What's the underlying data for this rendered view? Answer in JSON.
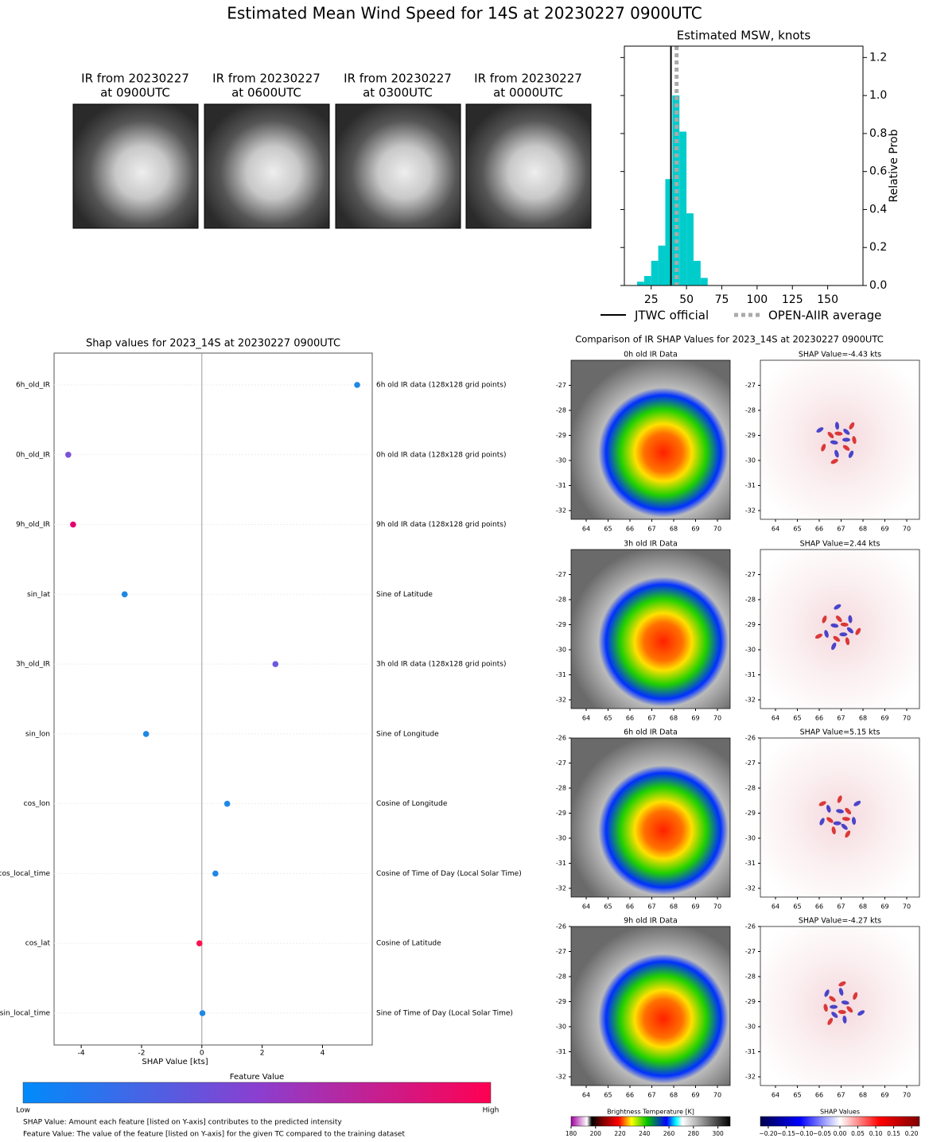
{
  "title": "Estimated Mean Wind Speed for 14S at 20230227 0900UTC",
  "ir_images": [
    {
      "lines": [
        "IR from 20230227",
        "at 0900UTC"
      ]
    },
    {
      "lines": [
        "IR from 20230227",
        "at 0600UTC"
      ]
    },
    {
      "lines": [
        "IR from 20230227",
        "at 0300UTC"
      ]
    },
    {
      "lines": [
        "IR from 20230227",
        "at 0000UTC"
      ]
    }
  ],
  "chart_data": [
    {
      "type": "histogram",
      "title": "Estimated MSW, knots",
      "ylabel": "Relative Prob",
      "bins": [
        15,
        20,
        25,
        30,
        35,
        40,
        45,
        50,
        55,
        60,
        65
      ],
      "values": [
        0.02,
        0.05,
        0.13,
        0.21,
        0.56,
        1.0,
        0.81,
        0.38,
        0.13,
        0.04
      ],
      "color": "#00cccc",
      "xlim": [
        6,
        175
      ],
      "xticks": [
        25,
        50,
        75,
        100,
        125,
        150
      ],
      "ylim": [
        0,
        1.26
      ],
      "yticks": [
        {
          "value": 0,
          "label": "0.0"
        },
        0.2,
        0.4,
        0.6,
        0.8,
        {
          "value": 1,
          "label": "1.0"
        },
        1.2
      ],
      "yaxis_side": "right",
      "vlines": [
        {
          "name": "JTWC official",
          "value": 39,
          "color": "#000000",
          "style": "solid"
        },
        {
          "name": "OPEN-AIIR average",
          "value": 43,
          "color": "#aaaaaa",
          "style": "dotted"
        }
      ],
      "legend": "below"
    },
    {
      "type": "scatter",
      "title": "Shap values for 2023_14S at 20230227 0900UTC",
      "xlabel": "SHAP Value [kts]",
      "categories": [
        "6h_old_IR",
        "0h_old_IR",
        "9h_old_IR",
        "sin_lat",
        "3h_old_IR",
        "sin_lon",
        "cos_lon",
        "cos_local_time",
        "cos_lat",
        "sin_local_time"
      ],
      "descriptions": [
        "6h old IR data (128x128 grid points)",
        "0h old IR data (128x128 grid points)",
        "9h old IR data (128x128 grid points)",
        "Sine of Latitude",
        "3h old IR data (128x128 grid points)",
        "Sine of Longitude",
        "Cosine of Longitude",
        "Cosine of Time of Day (Local Solar Time)",
        "Cosine of Latitude",
        "Sine of Time of Day (Local Solar Time)"
      ],
      "values": [
        5.15,
        -4.43,
        -4.27,
        -2.56,
        2.44,
        -1.85,
        0.84,
        0.45,
        -0.08,
        0.02
      ],
      "colors": [
        "#1e88e5",
        "#7a52d8",
        "#e6006e",
        "#1e88e5",
        "#6a5ae0",
        "#1e88e5",
        "#1e88e5",
        "#1e88e5",
        "#ff1050",
        "#1e88e5"
      ],
      "xlim": [
        -4.9,
        5.65
      ],
      "xticks": [
        -4,
        -2,
        0,
        2,
        4
      ],
      "grid": true
    }
  ],
  "shap_legend": {
    "title": "Feature Value",
    "low": "Low",
    "high": "High",
    "notes": [
      "SHAP Value: Amount each feature [listed on Y-axis] contributes to the predicted intensity",
      "Feature Value: The value of the feature [listed on Y-axis] for the given TC compared to the training dataset"
    ]
  },
  "comparison": {
    "title": "Comparison of IR SHAP Values for 2023_14S at 20230227 0900UTC",
    "xticks": [
      64,
      65,
      66,
      67,
      68,
      69,
      70
    ],
    "rows": [
      {
        "ir_title": "0h old IR Data",
        "shap_title": "SHAP Value=-4.43 kts",
        "yticks": [
          -27,
          -28,
          -29,
          -30,
          -31,
          -32
        ]
      },
      {
        "ir_title": "3h old IR Data",
        "shap_title": "SHAP Value=2.44 kts",
        "yticks": [
          -27,
          -28,
          -29,
          -30,
          -31,
          -32
        ]
      },
      {
        "ir_title": "6h old IR Data",
        "shap_title": "SHAP Value=5.15 kts",
        "yticks": [
          -26,
          -27,
          -28,
          -29,
          -30,
          -31,
          -32
        ]
      },
      {
        "ir_title": "9h old IR Data",
        "shap_title": "SHAP Value=-4.27 kts",
        "yticks": [
          -26,
          -27,
          -28,
          -29,
          -30,
          -31,
          -32
        ]
      }
    ],
    "colorbars": [
      {
        "label": "Brightness Temperature [K]",
        "lim": [
          180,
          310
        ],
        "ticks": [
          180,
          200,
          220,
          240,
          260,
          280,
          300
        ]
      },
      {
        "label": "SHAP Values",
        "lim": [
          -0.222,
          0.222
        ],
        "ticks": [
          {
            "value": -0.2,
            "label": "−0.20"
          },
          {
            "value": -0.15,
            "label": "−0.15"
          },
          {
            "value": -0.1,
            "label": "−0.10"
          },
          {
            "value": -0.05,
            "label": "−0.05"
          },
          {
            "value": 0,
            "label": "0.00"
          },
          0.05,
          {
            "value": 0.1,
            "label": "0.10"
          },
          0.15,
          {
            "value": 0.2,
            "label": "0.20"
          }
        ]
      }
    ]
  }
}
